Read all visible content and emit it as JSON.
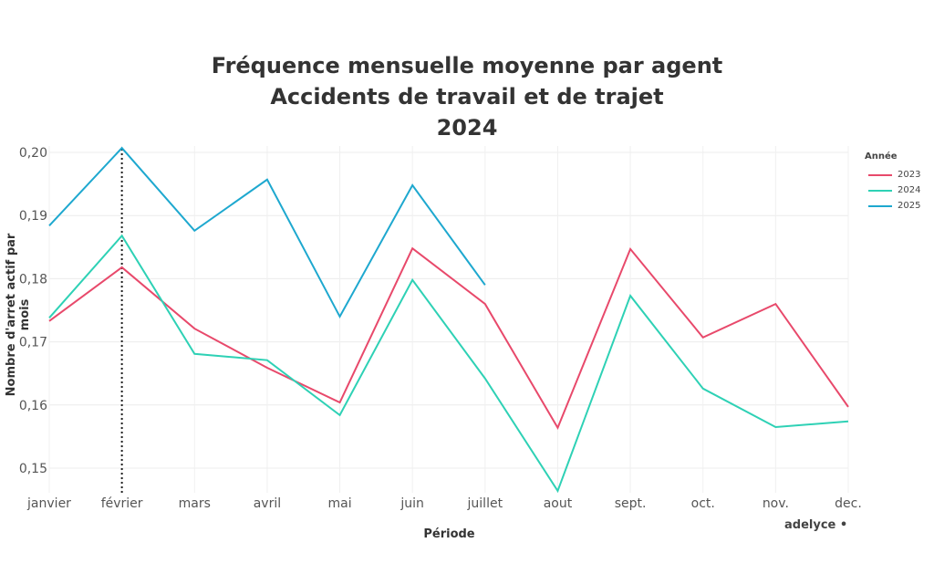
{
  "title": {
    "line1": "Fréquence mensuelle moyenne par agent",
    "line2": "Accidents de travail et de trajet",
    "line3": "2024"
  },
  "brand": "adelyce •",
  "chart_data": {
    "type": "line",
    "title": "Fréquence mensuelle moyenne par agent — Accidents de travail et de trajet — 2024",
    "xlabel": "Période",
    "ylabel": "Nombre d'arret actif par mois",
    "categories": [
      "janvier",
      "février",
      "mars",
      "avril",
      "mai",
      "juin",
      "juillet",
      "aout",
      "sept.",
      "oct.",
      "nov.",
      "dec."
    ],
    "yticks": [
      0.15,
      0.16,
      0.17,
      0.18,
      0.19,
      0.2
    ],
    "ytick_labels": [
      "0,15",
      "0,16",
      "0,17",
      "0,18",
      "0,19",
      "0,20"
    ],
    "ylim": [
      0.1465,
      0.2007
    ],
    "grid": true,
    "legend_title": "Année",
    "legend_position": "right",
    "vline": {
      "category": "février",
      "style": "dotted",
      "color": "#222222"
    },
    "series": [
      {
        "name": "2023",
        "color": "#e8496b",
        "values": [
          0.1733,
          0.1818,
          0.1721,
          0.1659,
          0.1604,
          0.1848,
          0.176,
          0.1564,
          0.1847,
          0.1707,
          0.176,
          0.1597
        ]
      },
      {
        "name": "2024",
        "color": "#2ed1b5",
        "values": [
          0.1738,
          0.1868,
          0.1681,
          0.1671,
          0.1584,
          0.1798,
          0.1642,
          0.1464,
          0.1773,
          0.1626,
          0.1565,
          0.1574
        ]
      },
      {
        "name": "2025",
        "color": "#1ea8cf",
        "values": [
          0.1884,
          0.2007,
          0.1876,
          0.1957,
          0.174,
          0.1948,
          0.179,
          null,
          null,
          null,
          null,
          null
        ]
      }
    ]
  }
}
